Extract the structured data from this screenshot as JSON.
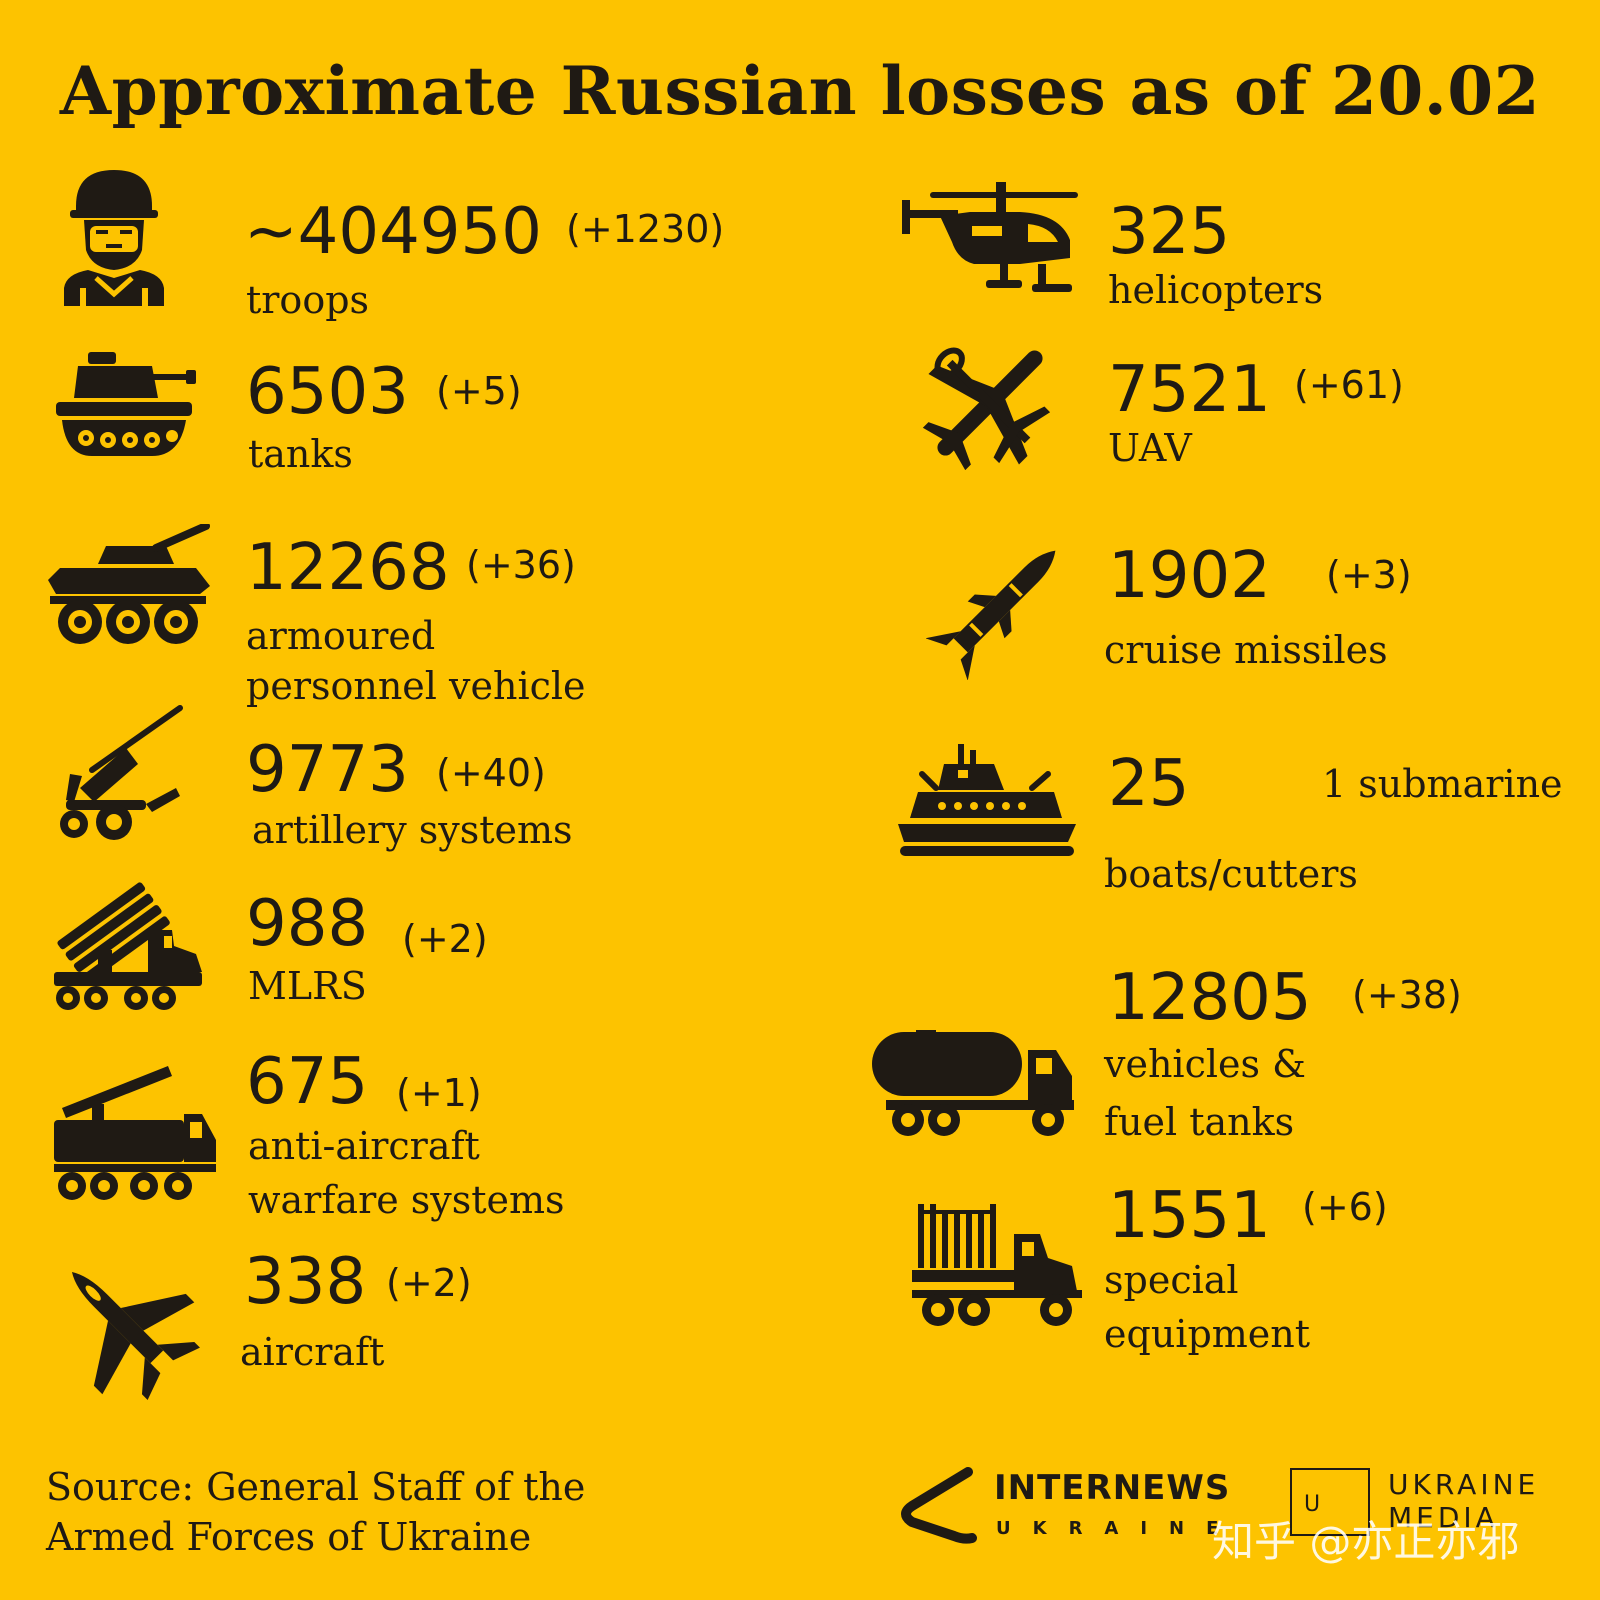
{
  "title": "Approximate Russian losses as of 20.02",
  "colors": {
    "background": "#FDC300",
    "ink": "#1f1a14"
  },
  "items": {
    "troops": {
      "value": "~404950",
      "delta": "(+1230)",
      "label": "troops",
      "icon": "soldier-icon"
    },
    "tanks": {
      "value": "6503",
      "delta": "(+5)",
      "label": "tanks",
      "icon": "tank-icon"
    },
    "apv": {
      "value": "12268",
      "delta": "(+36)",
      "label1": "armoured",
      "label2": "personnel vehicle",
      "icon": "apc-icon"
    },
    "artillery": {
      "value": "9773",
      "delta": "(+40)",
      "label": "artillery systems",
      "icon": "artillery-icon"
    },
    "mlrs": {
      "value": "988",
      "delta": "(+2)",
      "label": "MLRS",
      "icon": "mlrs-icon"
    },
    "aa": {
      "value": "675",
      "delta": "(+1)",
      "label1": "anti-aircraft",
      "label2": "warfare systems",
      "icon": "anti-aircraft-icon"
    },
    "aircraft": {
      "value": "338",
      "delta": "(+2)",
      "label": "aircraft",
      "icon": "fighter-jet-icon"
    },
    "helicopters": {
      "value": "325",
      "label": "helicopters",
      "icon": "helicopter-icon"
    },
    "uav": {
      "value": "7521",
      "delta": "(+61)",
      "label": "UAV",
      "icon": "drone-icon"
    },
    "missiles": {
      "value": "1902",
      "delta": "(+3)",
      "label": "cruise missiles",
      "icon": "missile-icon"
    },
    "boats": {
      "value": "25",
      "note": "1 submarine",
      "label": "boats/cutters",
      "icon": "ship-icon"
    },
    "vehicles": {
      "value": "12805",
      "delta": "(+38)",
      "label1": "vehicles &",
      "label2": "fuel tanks",
      "icon": "fuel-truck-icon"
    },
    "special": {
      "value": "1551",
      "delta": "(+6)",
      "label1": "special",
      "label2": "equipment",
      "icon": "special-truck-icon"
    }
  },
  "source": {
    "line1": "Source: General Staff of the",
    "line2": "Armed Forces of Ukraine"
  },
  "logo": {
    "main": "INTERNEWS",
    "sub": "UKRAINE"
  },
  "logo2": {
    "letter": "U",
    "text1": "UKRAINE",
    "text2": "MEDIA"
  },
  "watermark": "知乎 @亦正亦邪"
}
